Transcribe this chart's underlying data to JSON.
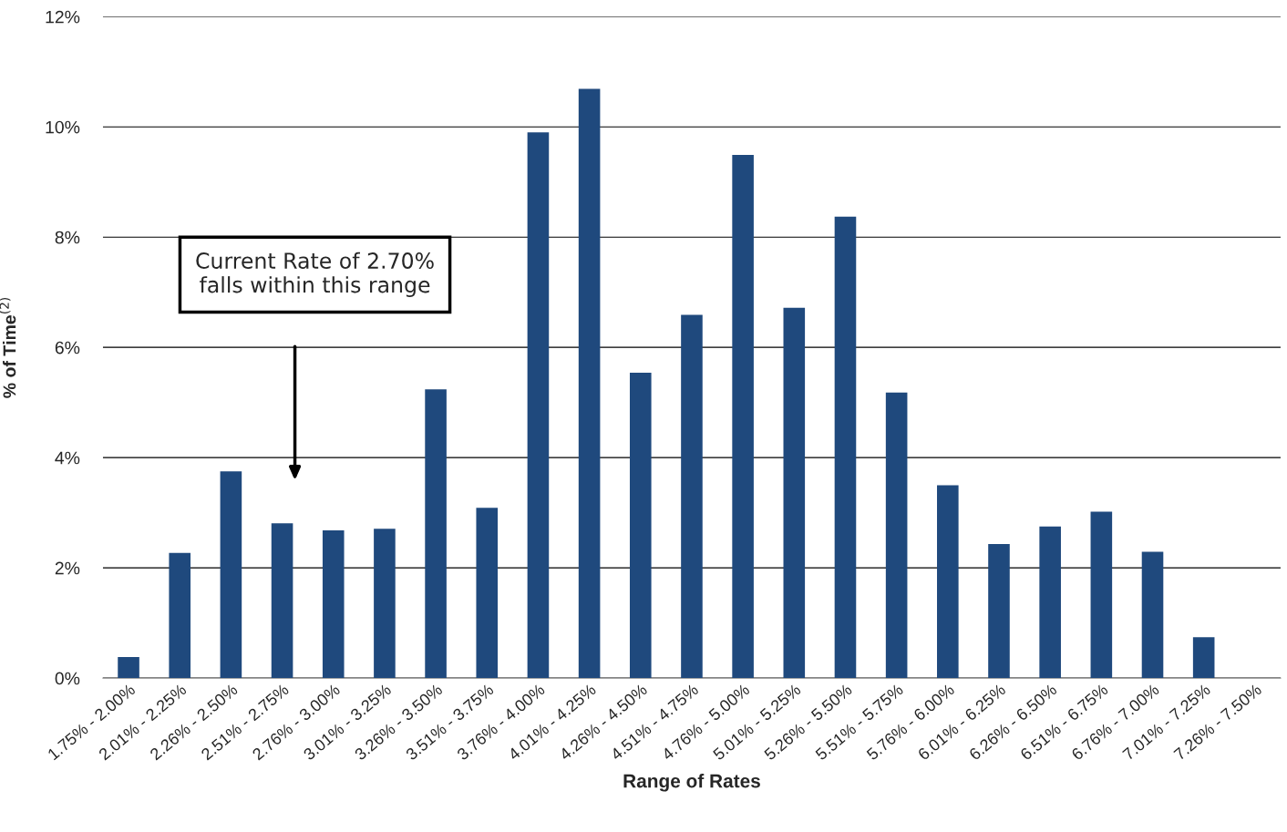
{
  "chart_data": {
    "type": "bar",
    "xlabel": "Range of Rates",
    "ylabel": "% of Time$^{(2)}$",
    "categories": [
      "1.75% - 2.00%",
      "2.01% - 2.25%",
      "2.26% - 2.50%",
      "2.51% - 2.75%",
      "2.76% - 3.00%",
      "3.01% - 3.25%",
      "3.26% - 3.50%",
      "3.51% - 3.75%",
      "3.76% - 4.00%",
      "4.01% - 4.25%",
      "4.26% - 4.50%",
      "4.51% - 4.75%",
      "4.76% - 5.00%",
      "5.01% - 5.25%",
      "5.26% - 5.50%",
      "5.51% - 5.75%",
      "5.76% - 6.00%",
      "6.01% - 6.25%",
      "6.26% - 6.50%",
      "6.51% - 6.75%",
      "6.76% - 7.00%",
      "7.01% - 7.25%",
      "7.26% - 7.50%"
    ],
    "values": [
      0.38,
      2.27,
      3.75,
      2.81,
      2.68,
      2.71,
      5.24,
      3.09,
      9.9,
      10.69,
      5.54,
      6.59,
      9.49,
      6.72,
      8.37,
      5.18,
      3.5,
      2.43,
      2.75,
      3.02,
      2.29,
      0.74,
      null
    ],
    "color": "#1f497d",
    "ylim": [
      0,
      12
    ],
    "yticks": [
      {
        "value": 0,
        "label": "0%"
      },
      {
        "value": 2,
        "label": "2%"
      },
      {
        "value": 4,
        "label": "4%"
      },
      {
        "value": 6,
        "label": "6%"
      },
      {
        "value": 8,
        "label": "8%"
      },
      {
        "value": 10,
        "label": "10%"
      },
      {
        "value": 12,
        "label": "12%"
      }
    ],
    "grid": "y",
    "legend": false,
    "annotations": [
      "Current Rate of 2.70%\nfalls within this range"
    ]
  }
}
